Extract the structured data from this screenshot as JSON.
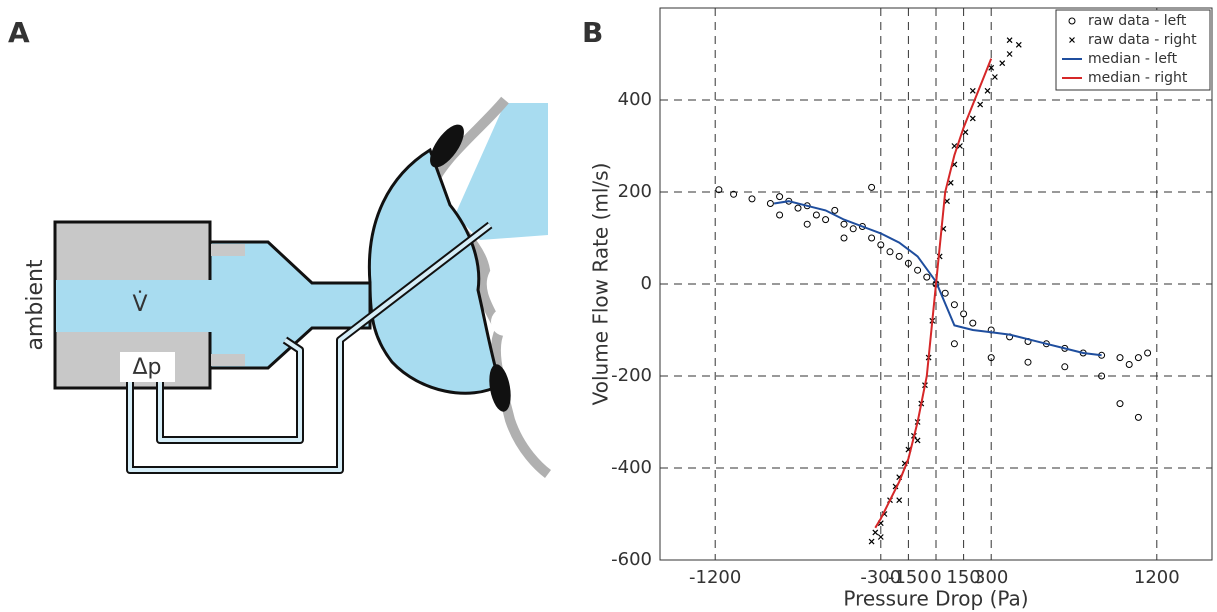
{
  "panel_a": {
    "label": "A",
    "ambient": "ambient",
    "flow": "V̇",
    "pressure": "Δp"
  },
  "chart_data": {
    "type": "scatter",
    "panel_label": "B",
    "x_label": "Pressure Drop (Pa)",
    "y_label": "Volume Flow Rate (ml/s)",
    "xlim": [
      -1500,
      1500
    ],
    "ylim": [
      -600,
      600
    ],
    "xticks": [
      -1200,
      -300,
      -150,
      0,
      150,
      300,
      1200
    ],
    "yticks": [
      -600,
      -400,
      -200,
      0,
      200,
      400
    ],
    "grid": true,
    "legend": "upper right",
    "series": [
      {
        "name": "raw data - left",
        "style": "markers",
        "marker": "o",
        "color": "#000000",
        "x": [
          -1180,
          -1100,
          -1000,
          -900,
          -850,
          -800,
          -750,
          -700,
          -650,
          -600,
          -550,
          -500,
          -450,
          -400,
          -350,
          -300,
          -250,
          -200,
          -150,
          -100,
          -50,
          0,
          50,
          100,
          150,
          200,
          300,
          400,
          500,
          600,
          700,
          800,
          900,
          1000,
          1050,
          1100,
          1150,
          -850,
          -700,
          -500,
          -350,
          100,
          300,
          500,
          700,
          900,
          1000,
          1100
        ],
        "values": [
          205,
          195,
          185,
          175,
          190,
          180,
          165,
          170,
          150,
          140,
          160,
          130,
          120,
          125,
          100,
          85,
          70,
          60,
          45,
          30,
          15,
          0,
          -20,
          -45,
          -65,
          -85,
          -100,
          -115,
          -125,
          -130,
          -140,
          -150,
          -155,
          -160,
          -175,
          -160,
          -150,
          150,
          130,
          100,
          210,
          -130,
          -160,
          -170,
          -180,
          -200,
          -260,
          -290
        ]
      },
      {
        "name": "raw data - right",
        "style": "markers",
        "marker": "x",
        "color": "#000000",
        "x": [
          -350,
          -330,
          -300,
          -280,
          -250,
          -220,
          -200,
          -170,
          -150,
          -120,
          -100,
          -80,
          -60,
          -40,
          -20,
          0,
          20,
          40,
          60,
          80,
          100,
          130,
          160,
          200,
          240,
          280,
          320,
          360,
          400,
          450,
          -300,
          -200,
          -100,
          100,
          200,
          300,
          400
        ],
        "values": [
          -560,
          -540,
          -520,
          -500,
          -470,
          -440,
          -420,
          -390,
          -360,
          -330,
          -300,
          -260,
          -220,
          -160,
          -80,
          0,
          60,
          120,
          180,
          220,
          260,
          300,
          330,
          360,
          390,
          420,
          450,
          480,
          500,
          520,
          -550,
          -470,
          -340,
          300,
          420,
          470,
          530
        ]
      },
      {
        "name": "median - left",
        "style": "line",
        "color": "#1f4e9e",
        "x": [
          -880,
          -800,
          -700,
          -600,
          -500,
          -400,
          -300,
          -200,
          -100,
          0,
          100,
          200,
          300,
          400,
          500,
          600,
          700,
          800,
          900
        ],
        "values": [
          175,
          180,
          170,
          160,
          140,
          125,
          110,
          90,
          60,
          5,
          -90,
          -100,
          -105,
          -110,
          -120,
          -130,
          -140,
          -150,
          -155
        ]
      },
      {
        "name": "median - right",
        "style": "line",
        "color": "#d62728",
        "x": [
          -330,
          -300,
          -250,
          -200,
          -150,
          -100,
          -50,
          0,
          50,
          100,
          150,
          200,
          250,
          300
        ],
        "values": [
          -530,
          -510,
          -470,
          -430,
          -380,
          -300,
          -200,
          0,
          200,
          280,
          340,
          390,
          440,
          490
        ]
      }
    ]
  }
}
